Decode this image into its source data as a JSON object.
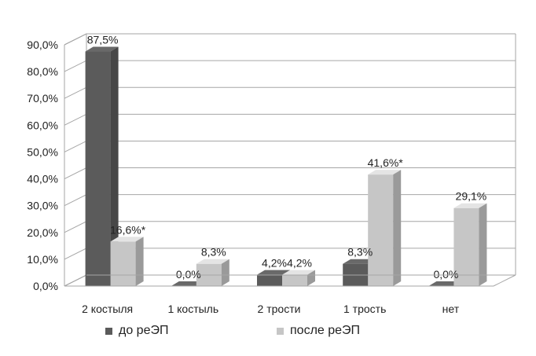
{
  "chart_data": {
    "type": "bar",
    "categories": [
      "2 костыля",
      "1 костыль",
      "2 трости",
      "1 трость",
      "нет"
    ],
    "series": [
      {
        "name": "до реЭП",
        "color": "#5b5b5b",
        "values": [
          87.5,
          0.0,
          4.2,
          8.3,
          0.0
        ],
        "labels": [
          "87,5%",
          "0,0%",
          "4,2%",
          "8,3%",
          "0,0%"
        ]
      },
      {
        "name": "после реЭП",
        "color": "#c6c6c6",
        "values": [
          16.6,
          8.3,
          4.2,
          41.6,
          29.1
        ],
        "labels": [
          "16,6%*",
          "8,3%",
          "4,2%",
          "41,6%*",
          "29,1%"
        ]
      }
    ],
    "yticks": [
      "0,0%",
      "10,0%",
      "20,0%",
      "30,0%",
      "40,0%",
      "50,0%",
      "60,0%",
      "70,0%",
      "80,0%",
      "90,0%"
    ],
    "ylim": [
      0,
      90
    ],
    "grid": true,
    "legend_position": "bottom"
  }
}
